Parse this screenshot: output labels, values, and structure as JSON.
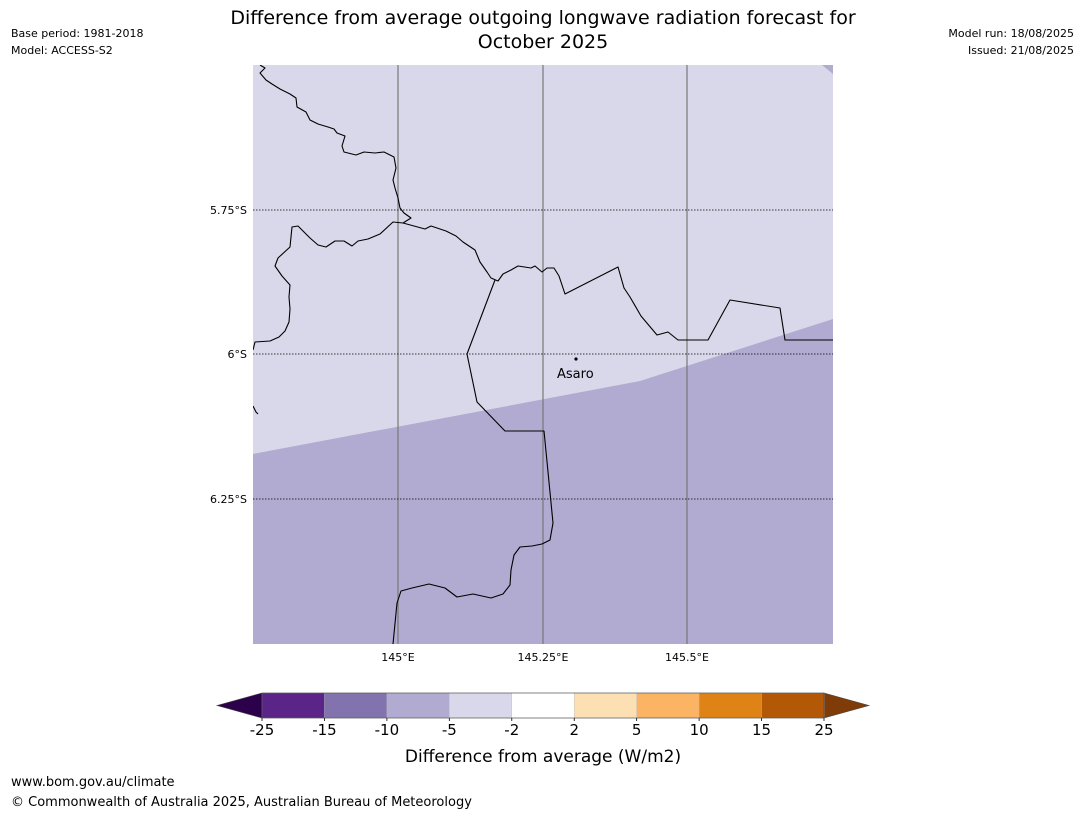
{
  "header": {
    "base_period": "Base period: 1981-2018",
    "model": "Model: ACCESS-S2",
    "model_run": "Model run: 18/08/2025",
    "issued": "Issued: 21/08/2025",
    "title_line1": "Difference from average outgoing longwave radiation forecast for",
    "title_line2": "October 2025"
  },
  "map": {
    "lat_labels": [
      "5.75°S",
      "6°S",
      "6.25°S"
    ],
    "lon_labels": [
      "145°E",
      "145.25°E",
      "145.5°E"
    ],
    "place": {
      "name": "Asaro"
    },
    "shading_colors": {
      "light": "#d8d8ea",
      "medium": "#b1abd1"
    }
  },
  "colorbar": {
    "ticks": [
      "-25",
      "-15",
      "-10",
      "-5",
      "-2",
      "2",
      "5",
      "10",
      "15",
      "25"
    ],
    "colors": [
      "#5a2489",
      "#8272ae",
      "#b1abd1",
      "#d8d8ea",
      "#ffffff",
      "#fddfb4",
      "#fbb463",
      "#e08316",
      "#b35807"
    ],
    "under_color": "#2d004b",
    "over_color": "#7f3b08",
    "label": "Difference from average (W/m2)"
  },
  "footer": {
    "url": "www.bom.gov.au/climate",
    "copyright": "© Commonwealth of Australia 2025, Australian Bureau of Meteorology"
  }
}
